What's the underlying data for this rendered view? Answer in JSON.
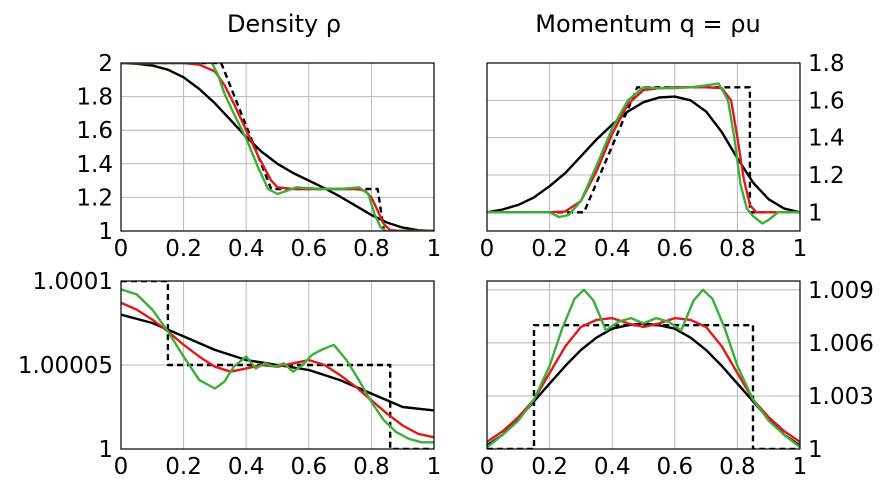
{
  "chart_data": [
    {
      "type": "line",
      "title": "Density ρ",
      "xlim": [
        0,
        1
      ],
      "ylim": [
        1,
        2
      ],
      "grid": true,
      "x_ticks": [
        0,
        0.2,
        0.4,
        0.6,
        0.8,
        1
      ],
      "x_tick_labels": [
        "0",
        "0.2",
        "0.4",
        "0.6",
        "0.8",
        "1"
      ],
      "y_ticks": [
        1,
        1.2,
        1.4,
        1.6,
        1.8,
        2
      ],
      "y_tick_labels": [
        "1",
        "1.2",
        "1.4",
        "1.6",
        "1.8",
        "2"
      ],
      "series": [
        {
          "color": "#000000",
          "dash": "6,4",
          "x": [
            0,
            0.32,
            0.48,
            0.82,
            0.82,
            0.84,
            1
          ],
          "y": [
            2,
            2,
            1.25,
            1.25,
            1.25,
            1,
            1
          ]
        },
        {
          "color": "#000000",
          "x": [
            0,
            0.05,
            0.1,
            0.15,
            0.2,
            0.25,
            0.3,
            0.35,
            0.4,
            0.45,
            0.5,
            0.55,
            0.6,
            0.65,
            0.7,
            0.75,
            0.8,
            0.85,
            0.9,
            0.95,
            1
          ],
          "y": [
            2,
            1.995,
            1.985,
            1.96,
            1.915,
            1.845,
            1.76,
            1.66,
            1.56,
            1.47,
            1.4,
            1.345,
            1.3,
            1.255,
            1.205,
            1.15,
            1.095,
            1.05,
            1.02,
            1.005,
            1
          ]
        },
        {
          "color": "#e01a1a",
          "x": [
            0,
            0.1,
            0.2,
            0.25,
            0.3,
            0.33,
            0.36,
            0.4,
            0.44,
            0.48,
            0.5,
            0.55,
            0.6,
            0.65,
            0.7,
            0.75,
            0.78,
            0.8,
            0.82,
            0.84,
            0.86,
            0.9,
            1
          ],
          "y": [
            2,
            2,
            2,
            1.99,
            1.95,
            1.87,
            1.76,
            1.6,
            1.44,
            1.3,
            1.26,
            1.25,
            1.25,
            1.25,
            1.25,
            1.25,
            1.24,
            1.2,
            1.12,
            1.04,
            1.005,
            1,
            1
          ]
        },
        {
          "color": "#3cae3c",
          "x": [
            0,
            0.1,
            0.2,
            0.26,
            0.29,
            0.31,
            0.33,
            0.36,
            0.4,
            0.44,
            0.47,
            0.5,
            0.53,
            0.56,
            0.6,
            0.65,
            0.7,
            0.73,
            0.76,
            0.79,
            0.81,
            0.83,
            0.85,
            0.88,
            0.92,
            1
          ],
          "y": [
            2,
            2,
            2,
            2.005,
            2.0,
            1.93,
            1.82,
            1.7,
            1.55,
            1.37,
            1.25,
            1.22,
            1.24,
            1.26,
            1.255,
            1.25,
            1.25,
            1.255,
            1.26,
            1.22,
            1.1,
            1.02,
            0.995,
            1.0,
            1.0,
            1.0
          ]
        }
      ]
    },
    {
      "type": "line",
      "title": "Momentum q = ρu",
      "xlim": [
        0,
        1
      ],
      "ylim": [
        0.9,
        1.8
      ],
      "grid": true,
      "x_ticks": [
        0,
        0.2,
        0.4,
        0.6,
        0.8,
        1
      ],
      "x_tick_labels": [
        "0",
        "0.2",
        "0.4",
        "0.6",
        "0.8",
        "1"
      ],
      "y_ticks": [
        1,
        1.2,
        1.4,
        1.6,
        1.8
      ],
      "y_tick_labels": [
        "1",
        "1.2",
        "1.4",
        "1.6",
        "1.8"
      ],
      "series": [
        {
          "color": "#000000",
          "dash": "6,4",
          "x": [
            0,
            0.31,
            0.48,
            0.84,
            0.84,
            1
          ],
          "y": [
            1,
            1,
            1.67,
            1.67,
            1,
            1
          ]
        },
        {
          "color": "#000000",
          "x": [
            0,
            0.05,
            0.1,
            0.15,
            0.2,
            0.25,
            0.3,
            0.35,
            0.4,
            0.45,
            0.5,
            0.55,
            0.6,
            0.65,
            0.7,
            0.75,
            0.8,
            0.85,
            0.9,
            0.95,
            1
          ],
          "y": [
            1.0,
            1.015,
            1.04,
            1.08,
            1.14,
            1.21,
            1.3,
            1.39,
            1.47,
            1.54,
            1.59,
            1.615,
            1.62,
            1.6,
            1.54,
            1.43,
            1.29,
            1.16,
            1.07,
            1.02,
            1.0
          ]
        },
        {
          "color": "#e01a1a",
          "x": [
            0,
            0.1,
            0.2,
            0.25,
            0.3,
            0.35,
            0.4,
            0.45,
            0.5,
            0.55,
            0.6,
            0.65,
            0.7,
            0.75,
            0.78,
            0.8,
            0.82,
            0.84,
            0.86,
            0.9,
            1
          ],
          "y": [
            1.0,
            1.0,
            1.0,
            1.005,
            1.06,
            1.22,
            1.42,
            1.58,
            1.655,
            1.665,
            1.67,
            1.67,
            1.67,
            1.665,
            1.6,
            1.4,
            1.18,
            1.04,
            1.0,
            1.0,
            1.0
          ]
        },
        {
          "color": "#3cae3c",
          "x": [
            0,
            0.1,
            0.2,
            0.23,
            0.26,
            0.3,
            0.35,
            0.4,
            0.45,
            0.5,
            0.55,
            0.6,
            0.65,
            0.7,
            0.74,
            0.77,
            0.79,
            0.81,
            0.83,
            0.85,
            0.88,
            0.9,
            0.93,
            1
          ],
          "y": [
            1.0,
            1.0,
            1.0,
            0.975,
            0.985,
            1.06,
            1.25,
            1.45,
            1.6,
            1.67,
            1.665,
            1.665,
            1.67,
            1.68,
            1.69,
            1.6,
            1.4,
            1.15,
            1.02,
            0.98,
            0.94,
            0.96,
            1.0,
            1.0
          ]
        }
      ]
    },
    {
      "type": "line",
      "title": "",
      "xlim": [
        0,
        1
      ],
      "ylim": [
        1,
        1.0001
      ],
      "grid": true,
      "x_ticks": [
        0,
        0.2,
        0.4,
        0.6,
        0.8,
        1
      ],
      "x_tick_labels": [
        "0",
        "0.2",
        "0.4",
        "0.6",
        "0.8",
        "1"
      ],
      "y_ticks": [
        1,
        1.00005,
        1.0001
      ],
      "y_tick_labels": [
        "1",
        "1.00005",
        "1.0001"
      ],
      "series": [
        {
          "color": "#000000",
          "dash": "6,4",
          "x": [
            0,
            0.15,
            0.15,
            0.86,
            0.86,
            1
          ],
          "y": [
            1.0001,
            1.0001,
            1.00005,
            1.00005,
            1.0,
            1.0
          ]
        },
        {
          "color": "#000000",
          "x": [
            0,
            0.1,
            0.2,
            0.3,
            0.4,
            0.5,
            0.6,
            0.7,
            0.8,
            0.9,
            1
          ],
          "y": [
            1.00008,
            1.000075,
            1.000067,
            1.000059,
            1.000053,
            1.00005,
            1.000047,
            1.000041,
            1.000033,
            1.000025,
            1.000023
          ]
        },
        {
          "color": "#e01a1a",
          "x": [
            0,
            0.05,
            0.1,
            0.15,
            0.2,
            0.25,
            0.3,
            0.35,
            0.4,
            0.45,
            0.5,
            0.55,
            0.6,
            0.65,
            0.7,
            0.75,
            0.8,
            0.85,
            0.9,
            0.95,
            1
          ],
          "y": [
            1.000087,
            1.000083,
            1.000077,
            1.00007,
            1.000062,
            1.000055,
            1.000049,
            1.000046,
            1.000048,
            1.00005,
            1.000049,
            1.000051,
            1.000053,
            1.00005,
            1.000044,
            1.000037,
            1.000029,
            1.000021,
            1.000014,
            1.000009,
            1.000007
          ]
        },
        {
          "color": "#3cae3c",
          "x": [
            0,
            0.05,
            0.1,
            0.15,
            0.2,
            0.25,
            0.3,
            0.33,
            0.36,
            0.4,
            0.43,
            0.46,
            0.49,
            0.52,
            0.55,
            0.58,
            0.61,
            0.64,
            0.68,
            0.72,
            0.76,
            0.8,
            0.84,
            0.88,
            0.92,
            0.96,
            1
          ],
          "y": [
            1.000095,
            1.000092,
            1.000083,
            1.00007,
            1.000055,
            1.000041,
            1.000036,
            1.00004,
            1.000049,
            1.000055,
            1.000048,
            1.000051,
            1.000049,
            1.000051,
            1.000046,
            1.00005,
            1.000056,
            1.000059,
            1.000062,
            1.000053,
            1.000041,
            1.000028,
            1.000017,
            1.00001,
            1.000006,
            1.000004,
            1.000004
          ]
        }
      ]
    },
    {
      "type": "line",
      "title": "",
      "xlim": [
        0,
        1
      ],
      "ylim": [
        1,
        1.0095
      ],
      "grid": true,
      "x_ticks": [
        0,
        0.2,
        0.4,
        0.6,
        0.8,
        1
      ],
      "x_tick_labels": [
        "0",
        "0.2",
        "0.4",
        "0.6",
        "0.8",
        "1"
      ],
      "y_ticks": [
        1,
        1.003,
        1.006,
        1.009
      ],
      "y_tick_labels": [
        "1",
        "1.003",
        "1.006",
        "1.009"
      ],
      "series": [
        {
          "color": "#000000",
          "dash": "6,4",
          "x": [
            0,
            0.15,
            0.15,
            0.85,
            0.85,
            1
          ],
          "y": [
            1.0,
            1.0,
            1.007,
            1.007,
            1.0,
            1.0
          ]
        },
        {
          "color": "#000000",
          "x": [
            0,
            0.05,
            0.1,
            0.15,
            0.2,
            0.25,
            0.3,
            0.35,
            0.4,
            0.45,
            0.5,
            0.55,
            0.6,
            0.65,
            0.7,
            0.75,
            0.8,
            0.85,
            0.9,
            0.95,
            1
          ],
          "y": [
            1.0002,
            1.0008,
            1.0017,
            1.0027,
            1.0037,
            1.0047,
            1.0056,
            1.0063,
            1.0068,
            1.007,
            1.0071,
            1.007,
            1.0068,
            1.0063,
            1.0056,
            1.0047,
            1.0037,
            1.0027,
            1.0017,
            1.0008,
            1.0002
          ]
        },
        {
          "color": "#e01a1a",
          "x": [
            0,
            0.05,
            0.1,
            0.15,
            0.2,
            0.25,
            0.3,
            0.35,
            0.4,
            0.45,
            0.5,
            0.55,
            0.6,
            0.65,
            0.7,
            0.75,
            0.8,
            0.85,
            0.9,
            0.95,
            1
          ],
          "y": [
            1.0004,
            1.001,
            1.0018,
            1.0028,
            1.0043,
            1.0058,
            1.0069,
            1.0073,
            1.0074,
            1.0071,
            1.0069,
            1.0071,
            1.0074,
            1.0073,
            1.0069,
            1.0058,
            1.0043,
            1.0028,
            1.0018,
            1.001,
            1.0004
          ]
        },
        {
          "color": "#3cae3c",
          "x": [
            0,
            0.05,
            0.1,
            0.15,
            0.2,
            0.24,
            0.28,
            0.31,
            0.34,
            0.38,
            0.42,
            0.46,
            0.5,
            0.54,
            0.58,
            0.62,
            0.66,
            0.69,
            0.72,
            0.76,
            0.8,
            0.85,
            0.9,
            0.95,
            1
          ],
          "y": [
            1.0001,
            1.0008,
            1.0016,
            1.0028,
            1.0047,
            1.0068,
            1.0085,
            1.009,
            1.0084,
            1.0067,
            1.0072,
            1.0074,
            1.0071,
            1.0074,
            1.0072,
            1.0067,
            1.0084,
            1.009,
            1.0085,
            1.0068,
            1.0047,
            1.0028,
            1.0016,
            1.0008,
            1.0001
          ]
        }
      ]
    }
  ]
}
